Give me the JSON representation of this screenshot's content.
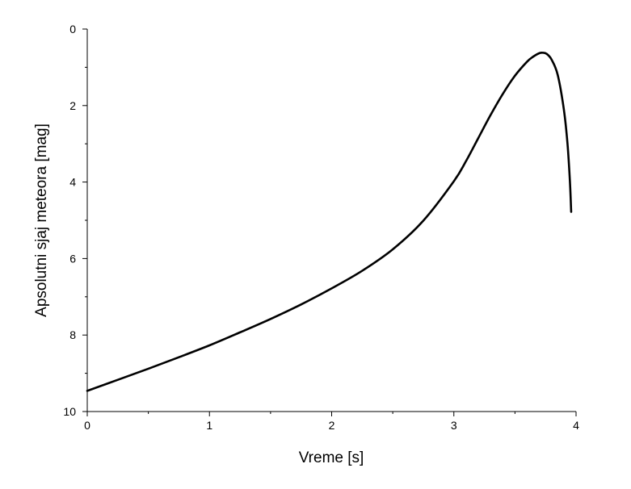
{
  "chart_data": {
    "type": "line",
    "title": "",
    "xlabel": "Vreme [s]",
    "ylabel": "Apsolutni sjaj meteora [mag]",
    "xlim": [
      0,
      4
    ],
    "ylim": [
      10,
      0
    ],
    "y_inverted": true,
    "grid": false,
    "legend": "none",
    "x_ticks": [
      {
        "value": 0,
        "label": "0"
      },
      {
        "value": 1,
        "label": "1"
      },
      {
        "value": 2,
        "label": "2"
      },
      {
        "value": 3,
        "label": "3"
      },
      {
        "value": 4,
        "label": "4"
      }
    ],
    "y_ticks": [
      {
        "value": 0,
        "label": "0"
      },
      {
        "value": 2,
        "label": "2"
      },
      {
        "value": 4,
        "label": "4"
      },
      {
        "value": 6,
        "label": "6"
      },
      {
        "value": 8,
        "label": "8"
      },
      {
        "value": 10,
        "label": "10"
      }
    ],
    "series": [
      {
        "color": "#000000",
        "x": [
          0,
          0.25,
          0.5,
          0.75,
          1.0,
          1.25,
          1.5,
          1.75,
          2.0,
          2.25,
          2.5,
          2.75,
          3.0,
          3.1,
          3.2,
          3.3,
          3.4,
          3.5,
          3.6,
          3.65,
          3.7,
          3.73,
          3.76,
          3.8,
          3.85,
          3.9,
          3.93,
          3.95,
          3.96
        ],
        "y": [
          9.46,
          9.17,
          8.88,
          8.58,
          8.27,
          7.93,
          7.58,
          7.2,
          6.78,
          6.32,
          5.76,
          5.01,
          3.98,
          3.45,
          2.85,
          2.25,
          1.7,
          1.22,
          0.85,
          0.72,
          0.63,
          0.62,
          0.65,
          0.8,
          1.2,
          2.1,
          3.0,
          4.0,
          4.78
        ]
      }
    ]
  }
}
